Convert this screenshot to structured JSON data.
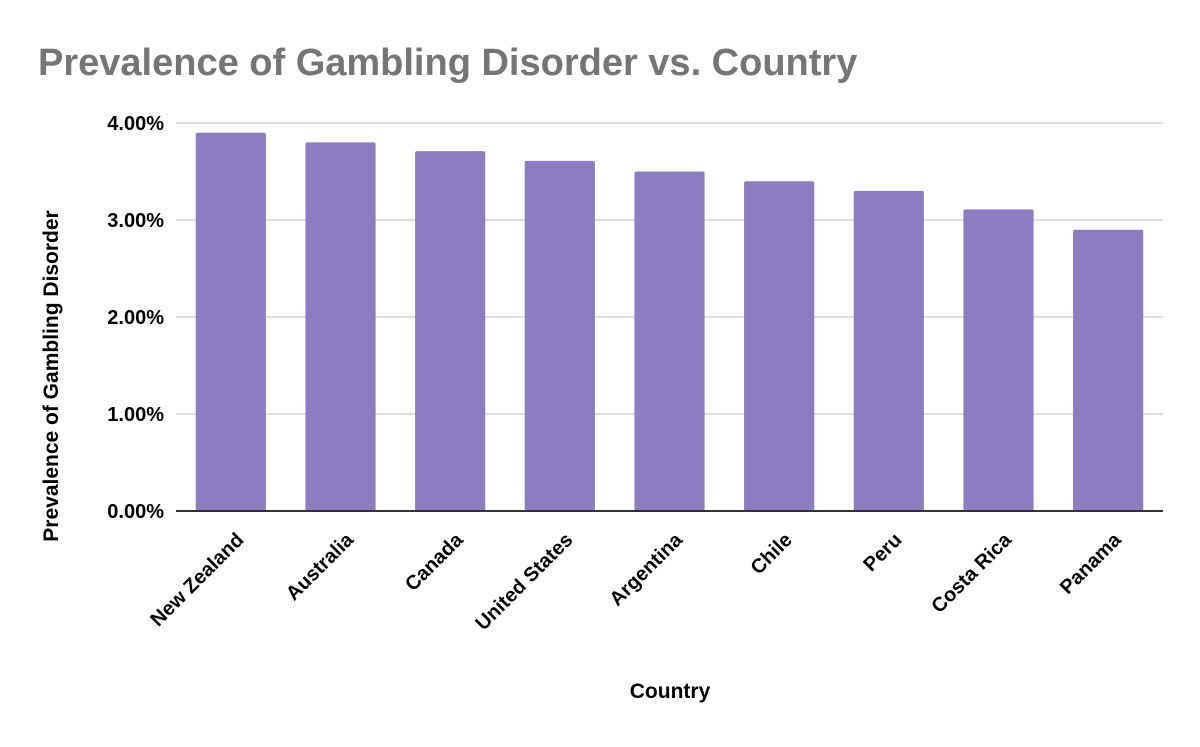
{
  "chart_data": {
    "type": "bar",
    "title": "Prevalence of Gambling Disorder vs. Country",
    "xlabel": "Country",
    "ylabel": "Prevalence of Gambling Disorder",
    "categories": [
      "New Zealand",
      "Australia",
      "Canada",
      "United States",
      "Argentina",
      "Chile",
      "Peru",
      "Costa Rica",
      "Panama"
    ],
    "series": [
      {
        "values": [
          3.9,
          3.8,
          3.71,
          3.61,
          3.5,
          3.4,
          3.3,
          3.11,
          2.9
        ]
      }
    ],
    "ylim": [
      0,
      4
    ],
    "yticks": [
      0,
      1,
      2,
      3,
      4
    ],
    "ytick_labels": [
      "0.00%",
      "1.00%",
      "2.00%",
      "3.00%",
      "4.00%"
    ],
    "grid": true,
    "legend": "none",
    "bar_color": "#8c7dc1",
    "title_color": "#757575"
  }
}
